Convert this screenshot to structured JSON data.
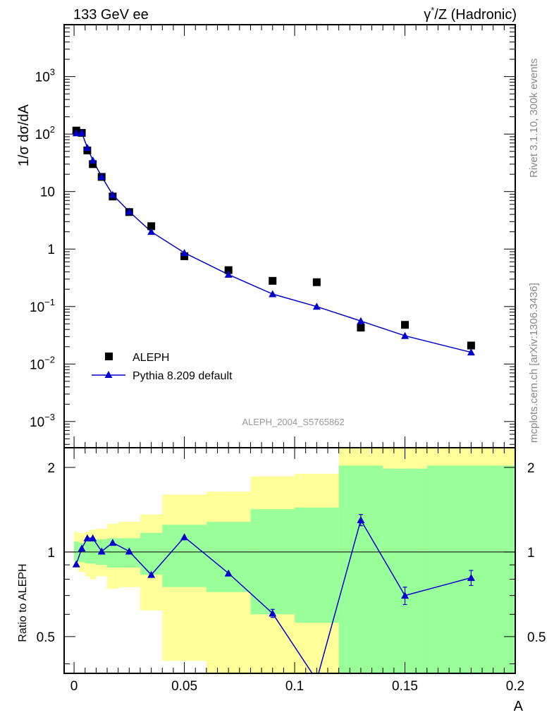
{
  "header": {
    "left_title": "133 GeV ee",
    "right_title_prefix": "γ",
    "right_title_sup": "*",
    "right_title_suffix": "/Z (Hadronic)"
  },
  "side_labels": {
    "rivet": "Rivet 3.1.10,  300k events",
    "mcplots": "mcplots.cern.ch [arXiv:1306.3436]"
  },
  "analysis_id": "ALEPH_2004_S5765862",
  "colors": {
    "data": "#000000",
    "mc": "#0000cc",
    "band_inner": "#99ff99",
    "band_outer": "#ffff99"
  },
  "chart_data": [
    {
      "type": "scatter",
      "panel": "main",
      "ylabel": "1/σ  dσ/dA",
      "yscale": "log",
      "xlim": [
        -0.0045,
        0.2
      ],
      "ylim": [
        0.00035,
        8000
      ],
      "y_ticks": [
        {
          "v": 0.001,
          "base": "10",
          "exp": "−3"
        },
        {
          "v": 0.01,
          "base": "10",
          "exp": "−2"
        },
        {
          "v": 0.1,
          "base": "10",
          "exp": "−1"
        },
        {
          "v": 1,
          "base": "1",
          "exp": ""
        },
        {
          "v": 10,
          "base": "10",
          "exp": ""
        },
        {
          "v": 100,
          "base": "10",
          "exp": "2"
        },
        {
          "v": 1000,
          "base": "10",
          "exp": "3"
        }
      ],
      "legend_position": "bottom-left",
      "series": [
        {
          "name": "ALEPH",
          "marker": "square",
          "x": [
            0.001,
            0.0035,
            0.006,
            0.0085,
            0.0125,
            0.0175,
            0.025,
            0.035,
            0.05,
            0.07,
            0.09,
            0.11,
            0.13,
            0.15,
            0.18
          ],
          "y": [
            115,
            105,
            52,
            30,
            18,
            8.2,
            4.4,
            2.5,
            0.75,
            0.43,
            0.28,
            0.265,
            0.043,
            0.048,
            0.021
          ]
        },
        {
          "name": "Pythia 8.209 default",
          "marker": "triangle",
          "x": [
            0.001,
            0.0035,
            0.006,
            0.0085,
            0.0125,
            0.0175,
            0.025,
            0.035,
            0.05,
            0.07,
            0.09,
            0.11,
            0.13,
            0.15,
            0.18
          ],
          "y": [
            104,
            106,
            58,
            35,
            18.2,
            8.8,
            4.5,
            2.0,
            0.86,
            0.36,
            0.165,
            0.1,
            0.056,
            0.031,
            0.016
          ]
        }
      ]
    },
    {
      "type": "line",
      "panel": "ratio",
      "ylabel": "Ratio to ALEPH",
      "xlabel": "A",
      "yscale": "log",
      "xlim": [
        -0.0045,
        0.2
      ],
      "ylim": [
        0.37,
        2.35
      ],
      "reference_line": 1,
      "y_ticks": [
        {
          "v": 0.5,
          "label": "0.5"
        },
        {
          "v": 1,
          "label": "1"
        },
        {
          "v": 2,
          "label": "2"
        }
      ],
      "x_ticks": [
        {
          "v": 0,
          "label": "0"
        },
        {
          "v": 0.05,
          "label": "0.05"
        },
        {
          "v": 0.1,
          "label": "0.1"
        },
        {
          "v": 0.15,
          "label": "0.15"
        },
        {
          "v": 0.2,
          "label": "0.2"
        }
      ],
      "bands": [
        {
          "x0": 0.0,
          "x1": 0.002,
          "inner": [
            0.93,
            1.09
          ],
          "outer": [
            0.88,
            1.18
          ]
        },
        {
          "x0": 0.002,
          "x1": 0.005,
          "inner": [
            0.92,
            1.08
          ],
          "outer": [
            0.85,
            1.17
          ]
        },
        {
          "x0": 0.005,
          "x1": 0.007,
          "inner": [
            0.91,
            1.09
          ],
          "outer": [
            0.82,
            1.18
          ]
        },
        {
          "x0": 0.007,
          "x1": 0.01,
          "inner": [
            0.91,
            1.1
          ],
          "outer": [
            0.8,
            1.2
          ]
        },
        {
          "x0": 0.01,
          "x1": 0.015,
          "inner": [
            0.9,
            1.11
          ],
          "outer": [
            0.82,
            1.21
          ]
        },
        {
          "x0": 0.015,
          "x1": 0.02,
          "inner": [
            0.88,
            1.12
          ],
          "outer": [
            0.74,
            1.26
          ]
        },
        {
          "x0": 0.02,
          "x1": 0.03,
          "inner": [
            0.88,
            1.12
          ],
          "outer": [
            0.75,
            1.28
          ]
        },
        {
          "x0": 0.03,
          "x1": 0.04,
          "inner": [
            0.83,
            1.17
          ],
          "outer": [
            0.62,
            1.36
          ]
        },
        {
          "x0": 0.04,
          "x1": 0.06,
          "inner": [
            0.75,
            1.25
          ],
          "outer": [
            0.41,
            1.6
          ]
        },
        {
          "x0": 0.06,
          "x1": 0.08,
          "inner": [
            0.72,
            1.28
          ],
          "outer": [
            0.37,
            1.64
          ]
        },
        {
          "x0": 0.08,
          "x1": 0.1,
          "inner": [
            0.6,
            1.42
          ],
          "outer": [
            0.37,
            1.86
          ]
        },
        {
          "x0": 0.1,
          "x1": 0.12,
          "inner": [
            0.56,
            1.44
          ],
          "outer": [
            0.37,
            1.9
          ]
        },
        {
          "x0": 0.12,
          "x1": 0.14,
          "inner": [
            0.37,
            2.03
          ],
          "outer": [
            0.37,
            2.35
          ]
        },
        {
          "x0": 0.14,
          "x1": 0.16,
          "inner": [
            0.37,
            1.98
          ],
          "outer": [
            0.37,
            2.35
          ]
        },
        {
          "x0": 0.16,
          "x1": 0.2,
          "inner": [
            0.37,
            2.03
          ],
          "outer": [
            0.37,
            2.35
          ]
        }
      ],
      "series": [
        {
          "name": "Pythia 8.209 default",
          "x": [
            0.001,
            0.0035,
            0.006,
            0.0085,
            0.0125,
            0.0175,
            0.025,
            0.035,
            0.05,
            0.07,
            0.09,
            0.11,
            0.13,
            0.15,
            0.18
          ],
          "y": [
            0.905,
            1.03,
            1.12,
            1.12,
            1.005,
            1.08,
            1.005,
            0.83,
            1.13,
            0.84,
            0.605,
            0.35,
            1.3,
            0.7,
            0.81
          ],
          "err": [
            0,
            0,
            0,
            0,
            0,
            0,
            0,
            0,
            0,
            0,
            0.02,
            0,
            0.06,
            0.05,
            0.05
          ]
        }
      ]
    }
  ]
}
